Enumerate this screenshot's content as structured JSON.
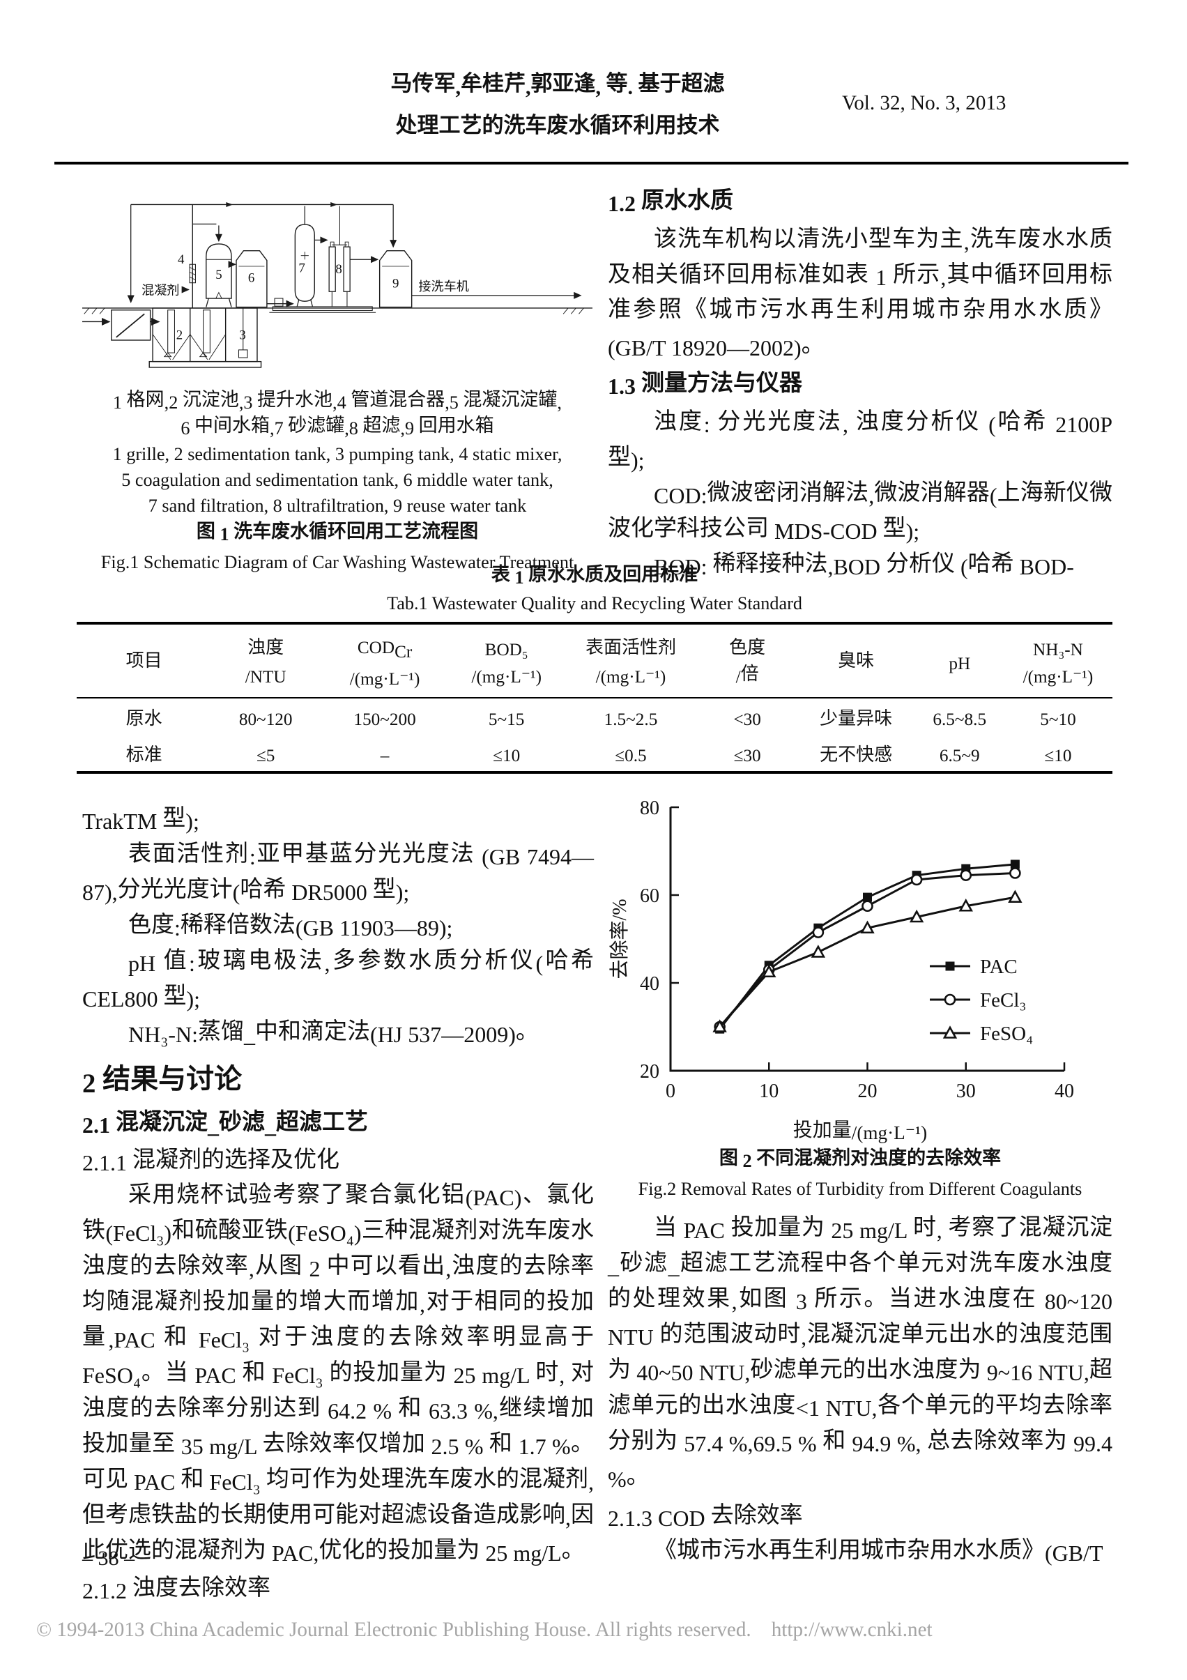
{
  "page": {
    "header": {
      "title_line1": "马传军,牟桂芹,郭亚逢, 等. 基于超滤",
      "title_line2": "处理工艺的洗车废水循环利用技术",
      "volume": "Vol. 32, No. 3, 2013"
    },
    "footer": {
      "page_number": "– 38 –",
      "copyright": "© 1994-2013 China Academic Journal Electronic Publishing House. All rights reserved.    http://www.cnki.net"
    }
  },
  "fig1": {
    "diagram_labels": {
      "n2": "2",
      "n3": "3",
      "n4": "4",
      "n5": "5",
      "n6": "6",
      "n7": "7",
      "n8": "8",
      "n9": "9",
      "coagulant": "混凝剂",
      "to_washer": "接洗车机"
    },
    "caption_cn_1": "1 格网,2 沉淀池,3 提升水池,4 管道混合器,5 混凝沉淀罐,",
    "caption_cn_2": "6 中间水箱,7 砂滤罐,8 超滤,9 回用水箱",
    "caption_en_1": "1 grille, 2 sedimentation tank, 3 pumping tank, 4 static mixer,",
    "caption_en_2": "5 coagulation and sedimentation tank, 6 middle water tank,",
    "caption_en_3": "7 sand filtration, 8 ultrafiltration, 9 reuse water tank",
    "title_cn": "图 1  洗车废水循环回用工艺流程图",
    "title_en": "Fig.1  Schematic Diagram of Car Washing Wastewater Treatment"
  },
  "section_1_2": {
    "heading": "1.2 原水水质",
    "paragraph": "该洗车机构以清洗小型车为主,洗车废水水质及相关循环回用标准如表 1 所示,其中循环回用标准参照《城市污水再生利用城市杂用水水质》(GB/T 18920—2002)。"
  },
  "section_1_3": {
    "heading": "1.3 测量方法与仪器",
    "p_turbidity": "浊度: 分光光度法, 浊度分析仪 (哈希 2100P 型);",
    "p_cod": "COD:微波密闭消解法,微波消解器(上海新仪微波化学科技公司 MDS-COD 型);",
    "p_bod": "BOD: 稀释接种法,BOD 分析仪 (哈希 BOD-"
  },
  "table1": {
    "title_cn": "表 1  原水水质及回用标准",
    "title_en": "Tab.1  Wastewater Quality and Recycling Water Standard",
    "columns": [
      {
        "name": "项目",
        "unit": ""
      },
      {
        "name": "浊度",
        "unit": "/NTU"
      },
      {
        "name": "COD",
        "name_sub": "Cr",
        "unit": "/(mg·L⁻¹)"
      },
      {
        "name": "BOD₅",
        "unit": "/(mg·L⁻¹)"
      },
      {
        "name": "表面活性剂",
        "unit": "/(mg·L⁻¹)"
      },
      {
        "name": "色度",
        "unit": "/倍"
      },
      {
        "name": "臭味",
        "unit": ""
      },
      {
        "name": "pH",
        "unit": ""
      },
      {
        "name": "NH₃-N",
        "unit": "/(mg·L⁻¹)"
      }
    ],
    "rows": [
      {
        "label": "原水",
        "values": [
          "80~120",
          "150~200",
          "5~15",
          "1.5~2.5",
          "<30",
          "少量异味",
          "6.5~8.5",
          "5~10"
        ]
      },
      {
        "label": "标准",
        "values": [
          "≤5",
          "–",
          "≤10",
          "≤0.5",
          "≤30",
          "无不快感",
          "6.5~9",
          "≤10"
        ]
      }
    ]
  },
  "left_column": {
    "p_trak": "TrakTM 型);",
    "p_surfactant": "表面活性剂:亚甲基蓝分光光度法 (GB 7494—87),分光光度计(哈希 DR5000 型);",
    "p_chroma": "色度:稀释倍数法(GB 11903—89);",
    "p_ph": "pH 值:玻璃电极法,多参数水质分析仪(哈希 CEL800 型);",
    "p_nh3n": "NH₃-N:蒸馏_中和滴定法(HJ 537—2009)。",
    "h2": "2  结果与讨论",
    "h2_1": "2.1 混凝沉淀_砂滤_超滤工艺",
    "h2_1_1": "2.1.1  混凝剂的选择及优化",
    "p_coagulant_study": "采用烧杯试验考察了聚合氯化铝(PAC)、氯化铁(FeCl₃)和硫酸亚铁(FeSO₄)三种混凝剂对洗车废水浊度的去除效率,从图 2 中可以看出,浊度的去除率均随混凝剂投加量的增大而增加,对于相同的投加量,PAC 和 FeCl₃ 对于浊度的去除效率明显高于 FeSO₄。当 PAC 和 FeCl₃ 的投加量为 25 mg/L 时, 对浊度的去除率分别达到 64.2 % 和 63.3 %,继续增加投加量至 35 mg/L 去除效率仅增加 2.5 % 和 1.7 %。可见 PAC 和 FeCl₃ 均可作为处理洗车废水的混凝剂,但考虑铁盐的长期使用可能对超滤设备造成影响,因此优选的混凝剂为 PAC,优化的投加量为 25 mg/L。",
    "h2_1_2": "2.1.2  浊度去除效率"
  },
  "right_column": {
    "fig2_caption_cn": "图 2  不同混凝剂对浊度的去除效率",
    "fig2_caption_en": "Fig.2  Removal Rates of Turbidity from Different Coagulants",
    "p_units": "当 PAC 投加量为 25 mg/L 时, 考察了混凝沉淀_砂滤_超滤工艺流程中各个单元对洗车废水浊度的处理效果,如图 3 所示。当进水浊度在 80~120 NTU 的范围波动时,混凝沉淀单元出水的浊度范围为 40~50 NTU,砂滤单元的出水浊度为 9~16 NTU,超滤单元的出水浊度<1 NTU,各个单元的平均去除率分别为 57.4 %,69.5 % 和 94.9 %, 总去除效率为 99.4 %。",
    "h2_1_3": "2.1.3  COD 去除效率",
    "p_last": "《城市污水再生利用城市杂用水水质》(GB/T"
  },
  "chart_data": {
    "type": "line",
    "title": "图2 不同混凝剂对浊度的去除效率",
    "xlabel": "投加量/(mg·L⁻¹)",
    "ylabel": "去除率/%",
    "xlim": [
      0,
      40
    ],
    "ylim": [
      20,
      80
    ],
    "xticks": [
      0,
      10,
      20,
      30,
      40
    ],
    "yticks": [
      20,
      40,
      60,
      80
    ],
    "grid": false,
    "legend_position": "right-center",
    "x": [
      5,
      10,
      15,
      20,
      25,
      30,
      35
    ],
    "series": [
      {
        "name": "PAC",
        "marker": "square-filled",
        "values": [
          29.5,
          44,
          52.5,
          59.5,
          64.5,
          66,
          67
        ]
      },
      {
        "name": "FeCl₃",
        "marker": "circle-open",
        "values": [
          30,
          43,
          51.5,
          57.5,
          63.5,
          64.5,
          65
        ]
      },
      {
        "name": "FeSO₄",
        "marker": "triangle-open",
        "values": [
          30,
          42.5,
          47,
          52.5,
          55,
          57.5,
          59.5
        ]
      }
    ]
  }
}
